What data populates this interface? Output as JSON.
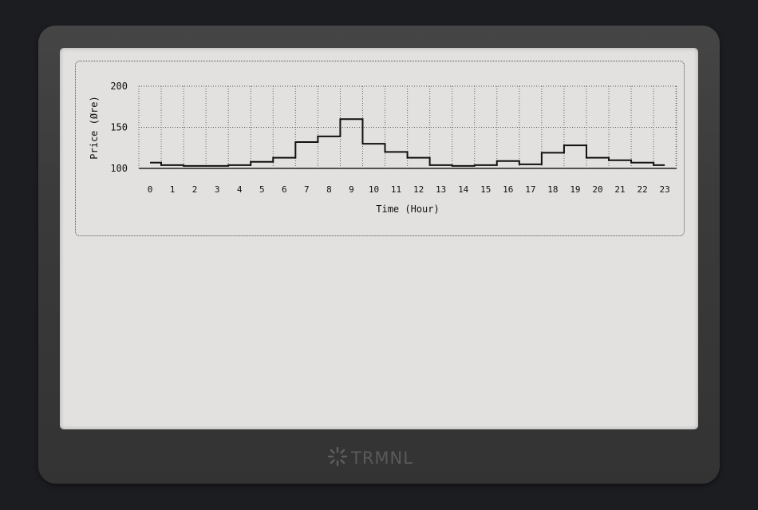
{
  "brand": {
    "name": "TRMNL",
    "icon": "sunburst-logo-icon"
  },
  "chart_data": {
    "type": "line",
    "step": true,
    "title": "",
    "xlabel": "Time (Hour)",
    "ylabel": "Price (Øre)",
    "x": [
      0,
      1,
      2,
      3,
      4,
      5,
      6,
      7,
      8,
      9,
      10,
      11,
      12,
      13,
      14,
      15,
      16,
      17,
      18,
      19,
      20,
      21,
      22,
      23
    ],
    "series": [
      {
        "values": [
          107,
          104,
          103,
          103,
          104,
          108,
          113,
          132,
          139,
          160,
          130,
          120,
          113,
          104,
          103,
          104,
          109,
          105,
          119,
          128,
          113,
          110,
          107,
          104
        ]
      }
    ],
    "yticks": [
      100,
      150,
      200
    ],
    "ylim": [
      100,
      200
    ],
    "xlim": [
      0,
      23
    ],
    "grid": true
  }
}
